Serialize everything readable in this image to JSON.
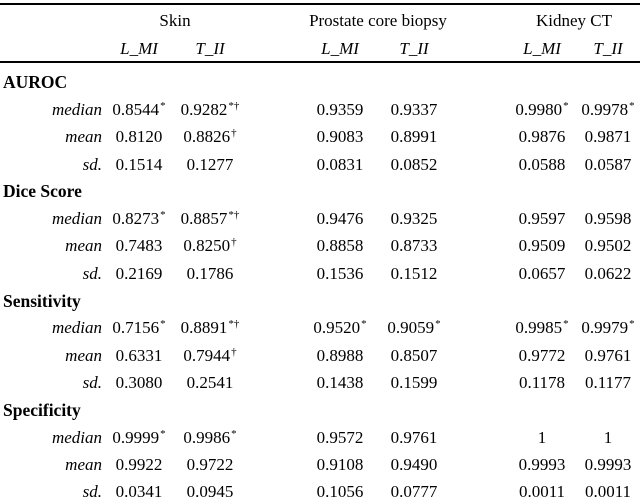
{
  "colors": {
    "background": "#ffffff",
    "text": "#000000",
    "rule": "#000000"
  },
  "table": {
    "groups": [
      {
        "label": "Skin"
      },
      {
        "label": "Prostate core biopsy"
      },
      {
        "label": "Kidney CT"
      }
    ],
    "subcolumns": [
      "L_MI",
      "T_II"
    ],
    "sections": [
      {
        "label": "AUROC",
        "rows": [
          {
            "label": "median",
            "cells": [
              [
                "0.8544",
                "*"
              ],
              [
                "0.9282",
                "*†"
              ],
              [
                "0.9359",
                ""
              ],
              [
                "0.9337",
                ""
              ],
              [
                "0.9980",
                "*"
              ],
              [
                "0.9978",
                "*"
              ]
            ]
          },
          {
            "label": "mean",
            "cells": [
              [
                "0.8120",
                ""
              ],
              [
                "0.8826",
                "†"
              ],
              [
                "0.9083",
                ""
              ],
              [
                "0.8991",
                ""
              ],
              [
                "0.9876",
                ""
              ],
              [
                "0.9871",
                ""
              ]
            ]
          },
          {
            "label": "sd.",
            "cells": [
              [
                "0.1514",
                ""
              ],
              [
                "0.1277",
                ""
              ],
              [
                "0.0831",
                ""
              ],
              [
                "0.0852",
                ""
              ],
              [
                "0.0588",
                ""
              ],
              [
                "0.0587",
                ""
              ]
            ]
          }
        ]
      },
      {
        "label": "Dice Score",
        "rows": [
          {
            "label": "median",
            "cells": [
              [
                "0.8273",
                "*"
              ],
              [
                "0.8857",
                "*†"
              ],
              [
                "0.9476",
                ""
              ],
              [
                "0.9325",
                ""
              ],
              [
                "0.9597",
                ""
              ],
              [
                "0.9598",
                ""
              ]
            ]
          },
          {
            "label": "mean",
            "cells": [
              [
                "0.7483",
                ""
              ],
              [
                "0.8250",
                "†"
              ],
              [
                "0.8858",
                ""
              ],
              [
                "0.8733",
                ""
              ],
              [
                "0.9509",
                ""
              ],
              [
                "0.9502",
                ""
              ]
            ]
          },
          {
            "label": "sd.",
            "cells": [
              [
                "0.2169",
                ""
              ],
              [
                "0.1786",
                ""
              ],
              [
                "0.1536",
                ""
              ],
              [
                "0.1512",
                ""
              ],
              [
                "0.0657",
                ""
              ],
              [
                "0.0622",
                ""
              ]
            ]
          }
        ]
      },
      {
        "label": "Sensitivity",
        "rows": [
          {
            "label": "median",
            "cells": [
              [
                "0.7156",
                "*"
              ],
              [
                "0.8891",
                "*†"
              ],
              [
                "0.9520",
                "*"
              ],
              [
                "0.9059",
                "*"
              ],
              [
                "0.9985",
                "*"
              ],
              [
                "0.9979",
                "*"
              ]
            ]
          },
          {
            "label": "mean",
            "cells": [
              [
                "0.6331",
                ""
              ],
              [
                "0.7944",
                "†"
              ],
              [
                "0.8988",
                ""
              ],
              [
                "0.8507",
                ""
              ],
              [
                "0.9772",
                ""
              ],
              [
                "0.9761",
                ""
              ]
            ]
          },
          {
            "label": "sd.",
            "cells": [
              [
                "0.3080",
                ""
              ],
              [
                "0.2541",
                ""
              ],
              [
                "0.1438",
                ""
              ],
              [
                "0.1599",
                ""
              ],
              [
                "0.1178",
                ""
              ],
              [
                "0.1177",
                ""
              ]
            ]
          }
        ]
      },
      {
        "label": "Specificity",
        "rows": [
          {
            "label": "median",
            "cells": [
              [
                "0.9999",
                "*"
              ],
              [
                "0.9986",
                "*"
              ],
              [
                "0.9572",
                ""
              ],
              [
                "0.9761",
                ""
              ],
              [
                "1",
                ""
              ],
              [
                "1",
                ""
              ]
            ]
          },
          {
            "label": "mean",
            "cells": [
              [
                "0.9922",
                ""
              ],
              [
                "0.9722",
                ""
              ],
              [
                "0.9108",
                ""
              ],
              [
                "0.9490",
                ""
              ],
              [
                "0.9993",
                ""
              ],
              [
                "0.9993",
                ""
              ]
            ]
          },
          {
            "label": "sd.",
            "cells": [
              [
                "0.0341",
                ""
              ],
              [
                "0.0945",
                ""
              ],
              [
                "0.1056",
                ""
              ],
              [
                "0.0777",
                ""
              ],
              [
                "0.0011",
                ""
              ],
              [
                "0.0011",
                ""
              ]
            ]
          }
        ]
      }
    ]
  }
}
